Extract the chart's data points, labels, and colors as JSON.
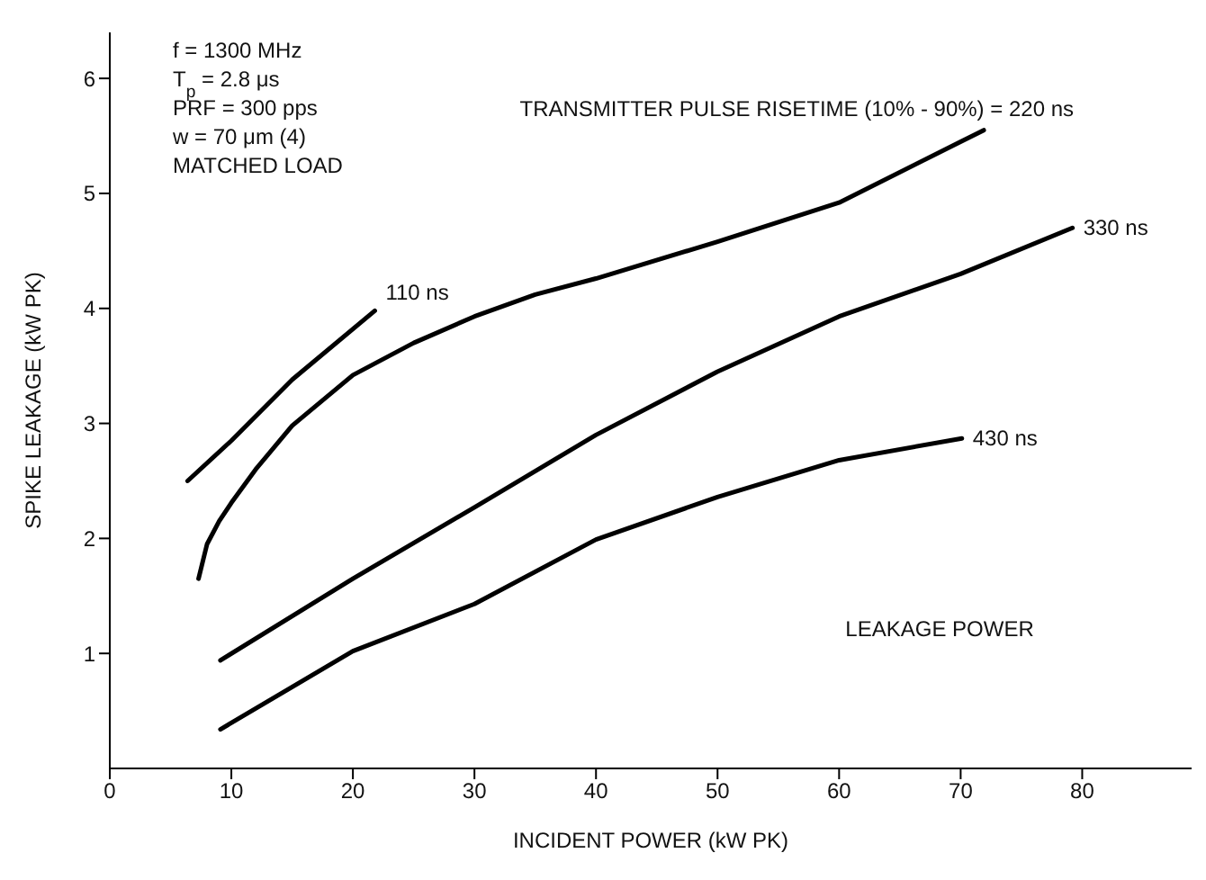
{
  "chart_data": {
    "type": "line",
    "xlabel": "INCIDENT POWER (kW PK)",
    "ylabel": "SPIKE LEAKAGE (kW PK)",
    "xlim": [
      0,
      89
    ],
    "xticks": [
      0,
      10,
      20,
      30,
      40,
      50,
      60,
      70,
      80
    ],
    "ylim": [
      0,
      6.4
    ],
    "yticks": [
      1,
      2,
      3,
      4,
      5,
      6
    ],
    "grid": false,
    "legend": false,
    "marker": "none",
    "line_style": "solid",
    "annotations": [
      "f = 1300 MHz",
      "T$_{p}$ = 2.8 μs",
      "PRF = 300 pps",
      "w = 70 μm (4)",
      "MATCHED LOAD",
      "LEAKAGE POWER"
    ],
    "series": [
      {
        "name": "110 ns",
        "color": "#000000",
        "x": [
          6.4,
          10,
          15,
          21.8
        ],
        "values": [
          2.5,
          2.85,
          3.38,
          3.98
        ]
      },
      {
        "name": "TRANSMITTER PULSE RISETIME (10% - 90%) = 220 ns",
        "color": "#000000",
        "x": [
          7.3,
          8,
          9,
          10,
          12,
          15,
          20,
          25,
          30,
          35,
          40,
          50,
          60,
          70,
          71.9
        ],
        "values": [
          1.65,
          1.95,
          2.15,
          2.31,
          2.6,
          2.98,
          3.42,
          3.7,
          3.93,
          4.12,
          4.26,
          4.58,
          4.92,
          5.45,
          5.55
        ]
      },
      {
        "name": "330 ns",
        "color": "#000000",
        "x": [
          9.1,
          20,
          30,
          40,
          50,
          60,
          70,
          79.2
        ],
        "values": [
          0.94,
          1.65,
          2.27,
          2.9,
          3.45,
          3.93,
          4.3,
          4.7
        ]
      },
      {
        "name": "430 ns",
        "color": "#000000",
        "x": [
          9.1,
          20,
          30,
          40,
          50,
          60,
          70.1
        ],
        "values": [
          0.34,
          1.02,
          1.43,
          1.99,
          2.36,
          2.68,
          2.87
        ]
      }
    ]
  }
}
